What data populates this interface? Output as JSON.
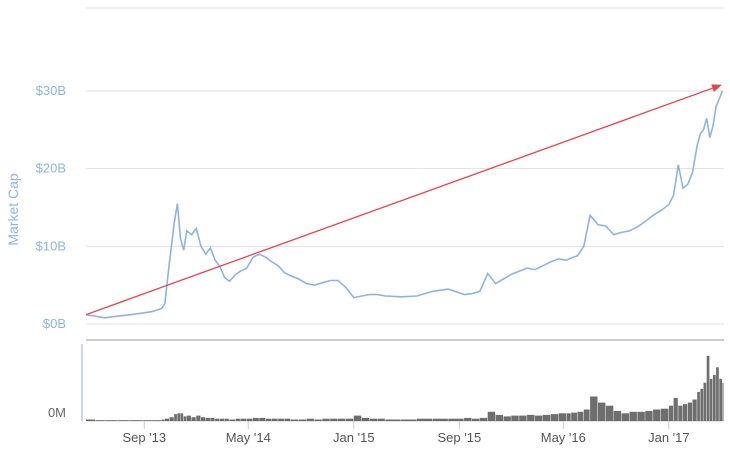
{
  "chart_data": {
    "type": "line",
    "ylabel": "Market Cap",
    "colors": {
      "line": "#8db4e2",
      "trend_arrow": "#e8414b",
      "volume": "#555555",
      "grid": "#e0e0e0"
    },
    "y_ticks": [
      "$0B",
      "$10B",
      "$20B",
      "$30B"
    ],
    "ylim": [
      0,
      30
    ],
    "x_ticks": [
      "Sep '13",
      "May '14",
      "Jan '15",
      "Sep '15",
      "May '16",
      "Jan '17"
    ],
    "x_tick_positions": [
      2013.67,
      2014.33,
      2015.0,
      2015.67,
      2016.33,
      2017.0
    ],
    "xlim": [
      2013.3,
      2017.35
    ],
    "grid": true,
    "series": [
      {
        "x": [
          2013.3,
          2013.36,
          2013.42,
          2013.5,
          2013.58,
          2013.66,
          2013.72,
          2013.78,
          2013.8,
          2013.83,
          2013.86,
          2013.88,
          2013.9,
          2013.92,
          2013.94,
          2013.97,
          2014.0,
          2014.03,
          2014.06,
          2014.09,
          2014.12,
          2014.15,
          2014.18,
          2014.21,
          2014.25,
          2014.28,
          2014.32,
          2014.36,
          2014.4,
          2014.44,
          2014.48,
          2014.52,
          2014.56,
          2014.6,
          2014.65,
          2014.7,
          2014.75,
          2014.8,
          2014.85,
          2014.9,
          2014.95,
          2015.0,
          2015.05,
          2015.1,
          2015.15,
          2015.2,
          2015.3,
          2015.4,
          2015.5,
          2015.6,
          2015.7,
          2015.75,
          2015.8,
          2015.85,
          2015.9,
          2015.95,
          2016.0,
          2016.05,
          2016.1,
          2016.15,
          2016.2,
          2016.25,
          2016.3,
          2016.35,
          2016.38,
          2016.42,
          2016.46,
          2016.5,
          2016.55,
          2016.6,
          2016.65,
          2016.7,
          2016.75,
          2016.8,
          2016.85,
          2016.9,
          2016.95,
          2017.0,
          2017.03,
          2017.06,
          2017.09,
          2017.12,
          2017.15,
          2017.18,
          2017.2,
          2017.22,
          2017.24,
          2017.26,
          2017.28,
          2017.3,
          2017.32,
          2017.34
        ],
        "values": [
          1.2,
          1.0,
          0.8,
          1.0,
          1.2,
          1.4,
          1.6,
          2.0,
          2.6,
          8.0,
          13.0,
          15.5,
          11.0,
          9.5,
          12.0,
          11.5,
          12.3,
          10.0,
          9.0,
          9.8,
          8.2,
          7.4,
          6.0,
          5.5,
          6.4,
          6.8,
          7.2,
          8.6,
          9.0,
          8.6,
          8.0,
          7.5,
          6.6,
          6.2,
          5.8,
          5.2,
          5.0,
          5.3,
          5.6,
          5.6,
          4.7,
          3.4,
          3.6,
          3.8,
          3.8,
          3.6,
          3.5,
          3.6,
          4.2,
          4.5,
          3.8,
          3.9,
          4.2,
          6.5,
          5.2,
          5.8,
          6.4,
          6.8,
          7.2,
          7.0,
          7.5,
          8.0,
          8.4,
          8.2,
          8.5,
          8.8,
          10.0,
          14.0,
          12.8,
          12.6,
          11.5,
          11.8,
          12.0,
          12.5,
          13.2,
          14.0,
          14.6,
          15.4,
          16.6,
          20.5,
          17.5,
          18.0,
          19.5,
          23.0,
          24.5,
          25.0,
          26.5,
          24.0,
          25.5,
          28.0,
          29.0,
          30.0
        ],
        "volume": [
          0.2,
          0.1,
          0.1,
          0.1,
          0.1,
          0.1,
          0.1,
          0.2,
          0.3,
          0.5,
          0.9,
          1.0,
          1.0,
          0.6,
          0.7,
          0.5,
          0.7,
          0.5,
          0.4,
          0.4,
          0.3,
          0.3,
          0.3,
          0.2,
          0.3,
          0.3,
          0.3,
          0.4,
          0.4,
          0.3,
          0.3,
          0.3,
          0.3,
          0.2,
          0.2,
          0.3,
          0.2,
          0.3,
          0.3,
          0.3,
          0.3,
          0.7,
          0.4,
          0.3,
          0.3,
          0.2,
          0.2,
          0.3,
          0.3,
          0.3,
          0.4,
          0.3,
          0.4,
          1.2,
          0.8,
          0.6,
          0.7,
          0.7,
          0.8,
          0.7,
          0.8,
          0.9,
          1.0,
          1.0,
          1.1,
          1.2,
          1.5,
          3.2,
          2.4,
          2.0,
          1.3,
          1.0,
          1.2,
          1.2,
          1.3,
          1.5,
          1.6,
          2.0,
          3.0,
          2.0,
          2.2,
          2.4,
          2.8,
          3.8,
          4.2,
          5.0,
          8.5,
          5.5,
          6.0,
          7.0,
          5.5,
          5.0
        ]
      }
    ],
    "trend_arrow": {
      "from": [
        2013.3,
        1.2
      ],
      "to": [
        2017.35,
        30.8
      ]
    },
    "volume_axis": {
      "tick": "0M",
      "max": 9
    }
  }
}
